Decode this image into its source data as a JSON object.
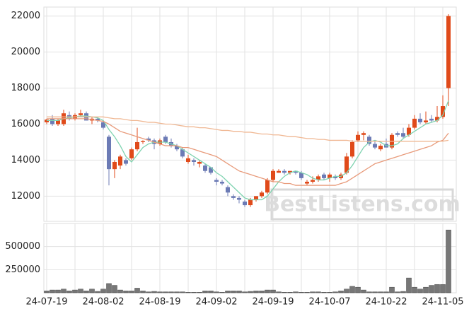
{
  "chart_data": [
    {
      "type": "candlestick",
      "watermark": "BestListens.com",
      "ylim": [
        10600,
        22500
      ],
      "yticks": [
        12000,
        14000,
        16000,
        18000,
        20000,
        22000
      ],
      "grid": true,
      "up_color": "#e04a1a",
      "down_color": "#6c7bb5",
      "open": [
        16100,
        16300,
        16000,
        16000,
        16500,
        16300,
        16500,
        16600,
        16200,
        16300,
        16100,
        15300,
        13500,
        13700,
        14000,
        14100,
        14600,
        15000,
        15200,
        15100,
        14900,
        15300,
        15000,
        14800,
        14600,
        13900,
        14000,
        13800,
        13700,
        13600,
        12900,
        12800,
        12500,
        12000,
        11900,
        11700,
        11500,
        11800,
        12000,
        12200,
        12900,
        13300,
        13400,
        13300,
        13400,
        13300,
        12700,
        12800,
        12900,
        13200,
        13000,
        13100,
        13000,
        13300,
        14200,
        15100,
        15400,
        15300,
        14900,
        14600,
        14900,
        14700,
        15500,
        15500,
        15400,
        15800,
        16300,
        16100,
        16300,
        16200,
        16400,
        18000
      ],
      "high": [
        16300,
        16500,
        16300,
        16800,
        16700,
        16600,
        16800,
        16700,
        16400,
        16400,
        16200,
        15400,
        14000,
        14300,
        14100,
        14700,
        15800,
        15100,
        15300,
        15200,
        15200,
        15400,
        15200,
        14900,
        14700,
        14300,
        14100,
        14000,
        13800,
        13600,
        13000,
        12900,
        12600,
        12100,
        12000,
        11800,
        11900,
        12000,
        12300,
        13000,
        13500,
        13500,
        13500,
        13400,
        13400,
        13400,
        12900,
        13100,
        13200,
        13300,
        13300,
        13200,
        13300,
        14400,
        15100,
        15600,
        15600,
        15400,
        15100,
        14900,
        15200,
        15500,
        15600,
        15800,
        16000,
        16500,
        16600,
        16700,
        16500,
        17000,
        17600,
        22100
      ],
      "low": [
        16000,
        15900,
        15900,
        15900,
        16200,
        16200,
        16400,
        16200,
        16000,
        16100,
        15700,
        12600,
        13000,
        13500,
        13700,
        14000,
        14500,
        14900,
        15000,
        14600,
        14800,
        14900,
        14700,
        14500,
        14100,
        13800,
        13700,
        13600,
        13300,
        13200,
        12600,
        12600,
        12000,
        11800,
        11600,
        11400,
        11400,
        11700,
        11900,
        12100,
        12800,
        13300,
        13200,
        13200,
        13200,
        12900,
        12600,
        12700,
        12800,
        12900,
        12800,
        12900,
        12900,
        13200,
        14100,
        15000,
        15100,
        14800,
        14600,
        14500,
        14700,
        14600,
        15300,
        15200,
        15300,
        15700,
        16000,
        16000,
        16100,
        16100,
        16300,
        17000
      ],
      "close": [
        16250,
        16000,
        16200,
        16600,
        16300,
        16500,
        16600,
        16200,
        16300,
        16200,
        15800,
        13500,
        13900,
        14200,
        13800,
        14600,
        15000,
        15050,
        15100,
        14900,
        15100,
        15000,
        14800,
        14600,
        14200,
        14100,
        13900,
        13900,
        13400,
        13300,
        12800,
        12700,
        12200,
        11900,
        11800,
        11500,
        11800,
        12000,
        12200,
        12900,
        13400,
        13400,
        13300,
        13400,
        13300,
        13000,
        12800,
        12900,
        13100,
        13000,
        13200,
        13000,
        13200,
        14200,
        15000,
        15400,
        15500,
        14900,
        14700,
        14800,
        14700,
        15400,
        15400,
        15300,
        15800,
        16300,
        16100,
        16200,
        16200,
        16400,
        17000,
        22000
      ],
      "series": [
        {
          "color": "#7fd3b0",
          "values": [
            16200,
            16200,
            16200,
            16300,
            16350,
            16400,
            16450,
            16450,
            16400,
            16350,
            16200,
            15700,
            15300,
            14800,
            14200,
            13900,
            14300,
            14700,
            14900,
            15000,
            15000,
            15000,
            14900,
            14800,
            14600,
            14400,
            14200,
            14000,
            13800,
            13600,
            13300,
            13100,
            12800,
            12500,
            12200,
            11900,
            11800,
            11800,
            11800,
            12000,
            12400,
            12800,
            13100,
            13300,
            13400,
            13300,
            13200,
            13000,
            12900,
            12900,
            13000,
            13100,
            13100,
            13300,
            13700,
            14200,
            14700,
            15000,
            15100,
            15000,
            14800,
            14800,
            14900,
            15200,
            15400,
            15600,
            15800,
            16000,
            16100,
            16200,
            16500,
            17300
          ]
        },
        {
          "color": "#e89a7a",
          "values": [
            16300,
            16300,
            16300,
            16300,
            16300,
            16300,
            16300,
            16300,
            16250,
            16200,
            16150,
            16000,
            15800,
            15600,
            15500,
            15400,
            15300,
            15200,
            15100,
            15000,
            14900,
            14800,
            14800,
            14800,
            14700,
            14700,
            14600,
            14500,
            14400,
            14300,
            14200,
            14000,
            13800,
            13600,
            13400,
            13300,
            13200,
            13100,
            13000,
            12900,
            12800,
            12800,
            12700,
            12700,
            12600,
            12600,
            12600,
            12600,
            12600,
            12600,
            12600,
            12600,
            12700,
            12800,
            13000,
            13200,
            13400,
            13600,
            13800,
            13900,
            14000,
            14100,
            14200,
            14300,
            14400,
            14500,
            14600,
            14700,
            14800,
            15000,
            15100,
            15500
          ]
        },
        {
          "color": "#f0b894",
          "values": [
            16400,
            16400,
            16400,
            16400,
            16400,
            16400,
            16400,
            16400,
            16400,
            16400,
            16400,
            16350,
            16300,
            16300,
            16250,
            16200,
            16200,
            16150,
            16100,
            16100,
            16050,
            16000,
            16000,
            15950,
            15900,
            15850,
            15850,
            15800,
            15800,
            15750,
            15700,
            15650,
            15650,
            15600,
            15600,
            15550,
            15550,
            15500,
            15450,
            15450,
            15400,
            15400,
            15350,
            15300,
            15300,
            15250,
            15200,
            15200,
            15150,
            15150,
            15100,
            15100,
            15100,
            15100,
            15050,
            15050,
            15050,
            15050,
            15050,
            15050,
            15050,
            15050,
            15050,
            15050,
            15050,
            15050,
            15050,
            15050,
            15050,
            15050,
            15050,
            15100
          ]
        }
      ]
    },
    {
      "type": "bar",
      "color": "#777777",
      "ylim": [
        0,
        750000
      ],
      "yticks": [
        250000,
        500000
      ],
      "grid": true,
      "categories": [
        "24-07-19",
        null,
        null,
        null,
        null,
        null,
        null,
        null,
        null,
        null,
        "24-08-02",
        null,
        null,
        null,
        null,
        null,
        null,
        null,
        null,
        null,
        "24-08-19",
        null,
        null,
        null,
        null,
        null,
        null,
        null,
        null,
        null,
        "24-09-02",
        null,
        null,
        null,
        null,
        null,
        null,
        null,
        null,
        null,
        "24-09-19",
        null,
        null,
        null,
        null,
        null,
        null,
        null,
        null,
        null,
        "24-10-07",
        null,
        null,
        null,
        null,
        null,
        null,
        null,
        null,
        null,
        "24-10-22",
        null,
        null,
        null,
        null,
        null,
        null,
        null,
        null,
        null,
        "24-11-05",
        null
      ],
      "values": [
        20000,
        30000,
        30000,
        40000,
        20000,
        30000,
        40000,
        20000,
        40000,
        15000,
        40000,
        100000,
        80000,
        30000,
        20000,
        20000,
        50000,
        20000,
        10000,
        15000,
        10000,
        10000,
        10000,
        10000,
        10000,
        5000,
        5000,
        5000,
        20000,
        20000,
        10000,
        5000,
        20000,
        20000,
        20000,
        10000,
        15000,
        20000,
        20000,
        30000,
        30000,
        10000,
        5000,
        5000,
        10000,
        5000,
        5000,
        10000,
        10000,
        5000,
        5000,
        10000,
        20000,
        40000,
        70000,
        60000,
        30000,
        10000,
        10000,
        10000,
        10000,
        60000,
        10000,
        15000,
        160000,
        60000,
        40000,
        60000,
        80000,
        90000,
        90000,
        680000
      ]
    }
  ]
}
